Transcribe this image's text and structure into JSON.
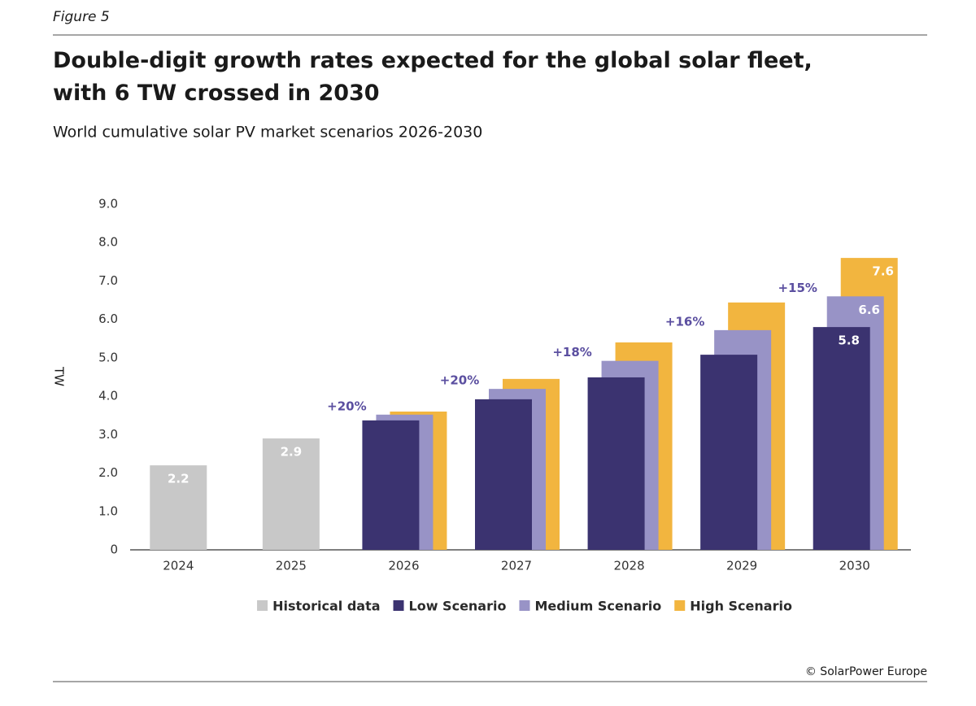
{
  "figure_label": "Figure 5",
  "chart_data": {
    "type": "bar",
    "title": "Double-digit growth rates expected for the global solar fleet, with 6 TW crossed in 2030",
    "subtitle": "World cumulative solar PV market scenarios 2026-2030",
    "y_label": "TW",
    "categories": [
      "2024",
      "2025",
      "2026",
      "2027",
      "2028",
      "2029",
      "2030"
    ],
    "series": [
      {
        "name": "Historical data",
        "color": "#c8c8c8",
        "values": [
          2.2,
          2.9,
          null,
          null,
          null,
          null,
          null
        ],
        "value_labels": [
          "2.2",
          "2.9",
          null,
          null,
          null,
          null,
          null
        ]
      },
      {
        "name": "Low Scenario",
        "color": "#3b3370",
        "values": [
          null,
          null,
          3.37,
          3.92,
          4.49,
          5.08,
          5.8
        ],
        "value_labels": [
          null,
          null,
          null,
          null,
          null,
          null,
          "5.8"
        ]
      },
      {
        "name": "Medium Scenario",
        "color": "#9893c6",
        "values": [
          null,
          null,
          3.52,
          4.19,
          4.92,
          5.72,
          6.6
        ],
        "value_labels": [
          null,
          null,
          null,
          null,
          null,
          null,
          "6.6"
        ]
      },
      {
        "name": "High Scenario",
        "color": "#f2b53f",
        "values": [
          null,
          null,
          3.6,
          4.45,
          5.4,
          6.44,
          7.6
        ],
        "value_labels": [
          null,
          null,
          null,
          null,
          null,
          null,
          "7.6"
        ]
      }
    ],
    "growth_labels": [
      null,
      null,
      "+20%",
      "+20%",
      "+18%",
      "+16%",
      "+15%"
    ],
    "ylim": [
      0,
      9
    ],
    "yticks": [
      0,
      {
        "value": 1,
        "label": "1.0"
      },
      {
        "value": 2,
        "label": "2.0"
      },
      {
        "value": 3,
        "label": "3.0"
      },
      {
        "value": 4,
        "label": "4.0"
      },
      {
        "value": 5,
        "label": "5.0"
      },
      {
        "value": 6,
        "label": "6.0"
      },
      {
        "value": 7,
        "label": "7.0"
      },
      {
        "value": 8,
        "label": "8.0"
      },
      {
        "value": 9,
        "label": "9.0"
      }
    ],
    "grid": false,
    "legend": "bottom",
    "source": "© SolarPower Europe"
  }
}
